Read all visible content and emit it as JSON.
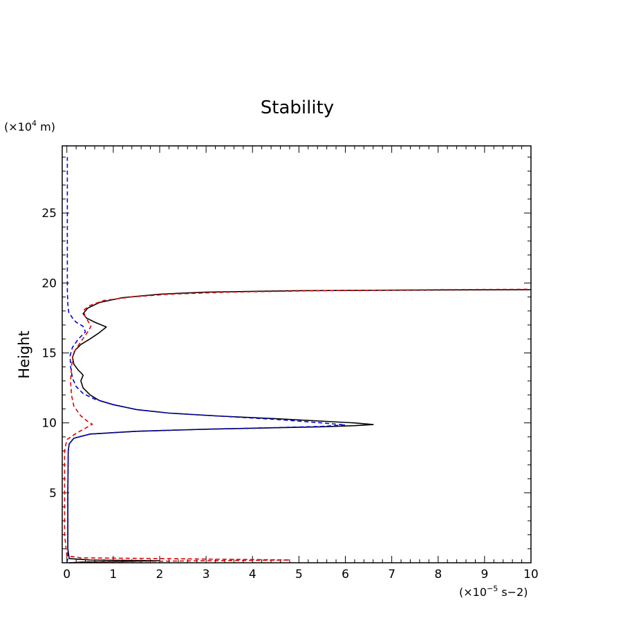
{
  "chart_data": {
    "type": "line",
    "title": "Stability",
    "xlabel": "",
    "xunit": {
      "prefix": "(×10",
      "exp": "−5",
      "suffix": " s−2)"
    },
    "ylabel": "Height",
    "yunit": {
      "prefix": "(×10",
      "exp": "4",
      "suffix": " m)"
    },
    "xlim": [
      -0.1,
      10
    ],
    "ylim": [
      0,
      29.8
    ],
    "xticks": [
      0,
      1,
      2,
      3,
      4,
      5,
      6,
      7,
      8,
      9,
      10
    ],
    "xtick_labels": [
      "0",
      "1",
      "2",
      "3",
      "4",
      "5",
      "6",
      "7",
      "8",
      "9",
      "10"
    ],
    "yticks": [
      5,
      10,
      15,
      20,
      25
    ],
    "ytick_labels": [
      "5",
      "10",
      "15",
      "20",
      "25"
    ],
    "grid": false,
    "series": [
      {
        "color": "#000000",
        "dash": "solid",
        "points": [
          [
            0.05,
            0.0
          ],
          [
            0.3,
            0.05
          ],
          [
            1.2,
            0.1
          ],
          [
            2.0,
            0.15
          ],
          [
            0.5,
            0.2
          ],
          [
            0.05,
            0.3
          ],
          [
            0.02,
            1.0
          ],
          [
            0.02,
            5.0
          ],
          [
            0.03,
            8.0
          ],
          [
            0.05,
            8.5
          ],
          [
            0.15,
            8.9
          ],
          [
            0.5,
            9.2
          ],
          [
            1.5,
            9.4
          ],
          [
            3.0,
            9.55
          ],
          [
            4.5,
            9.65
          ],
          [
            5.5,
            9.72
          ],
          [
            6.2,
            9.8
          ],
          [
            6.6,
            9.88
          ],
          [
            6.2,
            10.0
          ],
          [
            4.5,
            10.3
          ],
          [
            3.2,
            10.5
          ],
          [
            2.2,
            10.7
          ],
          [
            1.5,
            10.95
          ],
          [
            1.0,
            11.3
          ],
          [
            0.7,
            11.6
          ],
          [
            0.5,
            12.0
          ],
          [
            0.35,
            12.5
          ],
          [
            0.3,
            13.0
          ],
          [
            0.35,
            13.4
          ],
          [
            0.3,
            13.6
          ],
          [
            0.25,
            13.75
          ],
          [
            0.15,
            14.2
          ],
          [
            0.12,
            14.7
          ],
          [
            0.18,
            15.2
          ],
          [
            0.3,
            15.6
          ],
          [
            0.5,
            16.0
          ],
          [
            0.68,
            16.4
          ],
          [
            0.85,
            16.85
          ],
          [
            0.6,
            17.2
          ],
          [
            0.42,
            17.5
          ],
          [
            0.35,
            17.8
          ],
          [
            0.45,
            18.2
          ],
          [
            0.7,
            18.6
          ],
          [
            1.2,
            18.95
          ],
          [
            2.0,
            19.2
          ],
          [
            3.0,
            19.35
          ],
          [
            5.0,
            19.45
          ],
          [
            8.0,
            19.5
          ],
          [
            10.0,
            19.52
          ]
        ]
      },
      {
        "color": "#0000dd",
        "dash": "dashed",
        "points": [
          [
            0.0,
            0.0
          ],
          [
            0.02,
            0.3
          ],
          [
            0.02,
            5.0
          ],
          [
            0.03,
            8.0
          ],
          [
            0.05,
            8.5
          ],
          [
            0.15,
            8.9
          ],
          [
            0.5,
            9.2
          ],
          [
            1.5,
            9.4
          ],
          [
            3.0,
            9.55
          ],
          [
            4.5,
            9.66
          ],
          [
            5.5,
            9.75
          ],
          [
            6.0,
            9.85
          ],
          [
            5.5,
            10.0
          ],
          [
            4.5,
            10.25
          ],
          [
            3.2,
            10.5
          ],
          [
            2.2,
            10.7
          ],
          [
            1.5,
            10.95
          ],
          [
            1.0,
            11.3
          ],
          [
            0.6,
            11.7
          ],
          [
            0.35,
            12.1
          ],
          [
            0.2,
            12.6
          ],
          [
            0.12,
            13.2
          ],
          [
            0.08,
            14.0
          ],
          [
            0.07,
            14.8
          ],
          [
            0.12,
            15.4
          ],
          [
            0.25,
            16.0
          ],
          [
            0.4,
            16.5
          ],
          [
            0.35,
            16.9
          ],
          [
            0.2,
            17.2
          ],
          [
            0.12,
            17.5
          ],
          [
            0.04,
            17.9
          ],
          [
            0.02,
            18.5
          ],
          [
            0.01,
            19.5
          ],
          [
            0.01,
            22.0
          ],
          [
            0.01,
            25.0
          ],
          [
            0.01,
            29.0
          ]
        ]
      },
      {
        "color": "#dd0000",
        "dash": "dashed",
        "points": [
          [
            0.05,
            0.0
          ],
          [
            1.5,
            0.1
          ],
          [
            4.8,
            0.2
          ],
          [
            2.0,
            0.3
          ],
          [
            0.3,
            0.35
          ],
          [
            0.0,
            0.5
          ],
          [
            -0.05,
            2.0
          ],
          [
            -0.05,
            8.0
          ],
          [
            0.0,
            8.8
          ],
          [
            0.2,
            9.25
          ],
          [
            0.55,
            9.9
          ],
          [
            0.45,
            10.1
          ],
          [
            0.3,
            10.5
          ],
          [
            0.15,
            11.2
          ],
          [
            0.1,
            12.0
          ],
          [
            0.08,
            13.0
          ],
          [
            0.1,
            14.0
          ],
          [
            0.14,
            15.0
          ],
          [
            0.3,
            15.8
          ],
          [
            0.45,
            16.5
          ],
          [
            0.52,
            16.9
          ],
          [
            0.45,
            17.3
          ],
          [
            0.38,
            17.7
          ],
          [
            0.38,
            18.1
          ],
          [
            0.5,
            18.4
          ],
          [
            0.8,
            18.75
          ],
          [
            1.4,
            19.0
          ],
          [
            2.2,
            19.2
          ],
          [
            3.5,
            19.35
          ],
          [
            5.5,
            19.45
          ],
          [
            8.0,
            19.52
          ],
          [
            10.0,
            19.55
          ]
        ]
      }
    ]
  }
}
